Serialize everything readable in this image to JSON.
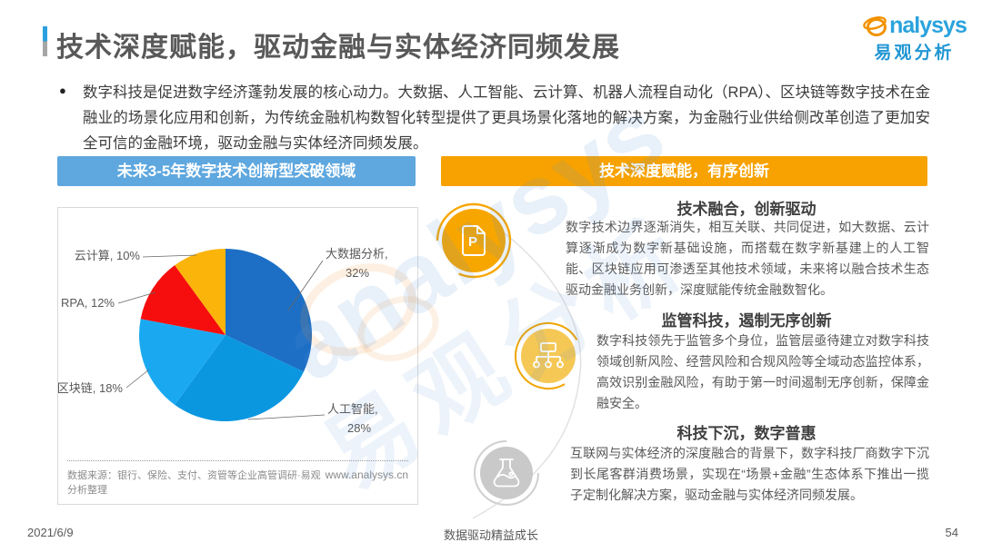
{
  "page": {
    "title": "技术深度赋能，驱动金融与实体经济同频发展",
    "bullet_text": "数字科技是促进数字经济蓬勃发展的核心动力。大数据、人工智能、云计算、机器人流程自动化（RPA）、区块链等数字技术在金融业的场景化应用和创新，为传统金融机构数智化转型提供了更具场景化落地的解决方案，为金融行业供给侧改革创造了更加安全可信的金融环境，驱动金融与实体经济同频发展。",
    "logo": {
      "brand": "analysys",
      "brand_cn": "易观分析"
    },
    "watermark": {
      "line1": "analysys",
      "line2": "易观分析"
    },
    "footer": {
      "date": "2021/6/9",
      "slogan": "数据驱动精益成长",
      "page_number": "54"
    }
  },
  "left_panel": {
    "header": "未来3-5年数字技术创新型突破领域",
    "source_note": "数据来源：银行、保险、支付、资管等企业高管调研·易观分析整理",
    "source_url": "www.analysys.cn"
  },
  "right_panel": {
    "header": "技术深度赋能，有序创新",
    "sections": [
      {
        "icon": "document-p-icon",
        "title": "技术融合，创新驱动",
        "body": "数字技术边界逐渐消失，相互关联、共同促进，如大数据、云计算逐渐成为数字新基础设施，而搭载在数字新基建上的人工智能、区块链应用可渗透至其他技术领域，未来将以融合技术生态驱动金融业务创新，深度赋能传统金融数智化。"
      },
      {
        "icon": "org-chart-icon",
        "title": "监管科技，遏制无序创新",
        "body": "数字科技领先于监管多个身位，监管层亟待建立对数字科技领域创新风险、经营风险和合规风险等全域动态监控体系，高效识别金融风险，有助于第一时间遏制无序创新，保障金融安全。"
      },
      {
        "icon": "flask-icon",
        "title": "科技下沉，数字普惠",
        "body": "互联网与实体经济的深度融合的背景下，数字科技厂商数字下沉到长尾客群消费场景，实现在“场景+金融”生态体系下推出一揽子定制化解决方案，驱动金融与实体经济同频发展。"
      }
    ]
  },
  "chart_data": {
    "type": "pie",
    "title": "未来3-5年数字技术创新型突破领域",
    "categories": [
      "大数据分析",
      "人工智能",
      "区块链",
      "RPA",
      "云计算"
    ],
    "values": [
      32,
      28,
      18,
      12,
      10
    ],
    "unit": "%",
    "colors": [
      "#1C6FC5",
      "#0B97E0",
      "#1AA9F0",
      "#F60D0D",
      "#FBB40A"
    ],
    "start_angle_deg": 0,
    "direction": "clockwise",
    "legend_position": "callout-labels",
    "source": "数据来源：银行、保险、支付、资管等企业高管调研·易观分析整理"
  }
}
